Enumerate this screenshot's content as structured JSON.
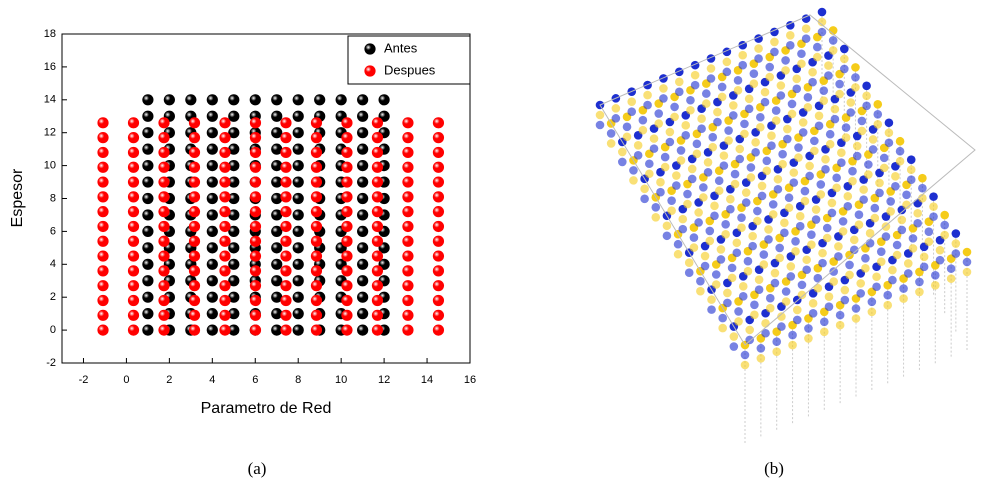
{
  "chart_data": {
    "type": "scatter",
    "xlabel": "Parametro de Red",
    "ylabel": "Espesor",
    "xlim": [
      -3,
      16
    ],
    "ylim": [
      -2,
      18
    ],
    "xticks": [
      -2,
      0,
      2,
      4,
      6,
      8,
      10,
      12,
      14,
      16
    ],
    "yticks": [
      -2,
      0,
      2,
      4,
      6,
      8,
      10,
      12,
      14,
      16,
      18
    ],
    "legend": "upper right",
    "series": [
      {
        "name": "Antes",
        "color": "#000000",
        "x": [
          1,
          1,
          1,
          1,
          1,
          1,
          1,
          1,
          1,
          1,
          1,
          1,
          1,
          1,
          1,
          2,
          2,
          2,
          2,
          2,
          2,
          2,
          2,
          2,
          2,
          2,
          2,
          2,
          2,
          2,
          3,
          3,
          3,
          3,
          3,
          3,
          3,
          3,
          3,
          3,
          3,
          3,
          3,
          3,
          3,
          4,
          4,
          4,
          4,
          4,
          4,
          4,
          4,
          4,
          4,
          4,
          4,
          4,
          4,
          4,
          5,
          5,
          5,
          5,
          5,
          5,
          5,
          5,
          5,
          5,
          5,
          5,
          5,
          5,
          5,
          6,
          6,
          6,
          6,
          6,
          6,
          6,
          6,
          6,
          6,
          6,
          6,
          6,
          6,
          6,
          7,
          7,
          7,
          7,
          7,
          7,
          7,
          7,
          7,
          7,
          7,
          7,
          7,
          7,
          7,
          8,
          8,
          8,
          8,
          8,
          8,
          8,
          8,
          8,
          8,
          8,
          8,
          8,
          8,
          8,
          9,
          9,
          9,
          9,
          9,
          9,
          9,
          9,
          9,
          9,
          9,
          9,
          9,
          9,
          9,
          10,
          10,
          10,
          10,
          10,
          10,
          10,
          10,
          10,
          10,
          10,
          10,
          10,
          10,
          10,
          11,
          11,
          11,
          11,
          11,
          11,
          11,
          11,
          11,
          11,
          11,
          11,
          11,
          11,
          11,
          12,
          12,
          12,
          12,
          12,
          12,
          12,
          12,
          12,
          12,
          12,
          12,
          12,
          12,
          12
        ],
        "values": [
          0,
          1,
          2,
          3,
          4,
          5,
          6,
          7,
          8,
          9,
          10,
          11,
          12,
          13,
          14,
          0,
          1,
          2,
          3,
          4,
          5,
          6,
          7,
          8,
          9,
          10,
          11,
          12,
          13,
          14,
          0,
          1,
          2,
          3,
          4,
          5,
          6,
          7,
          8,
          9,
          10,
          11,
          12,
          13,
          14,
          0,
          1,
          2,
          3,
          4,
          5,
          6,
          7,
          8,
          9,
          10,
          11,
          12,
          13,
          14,
          0,
          1,
          2,
          3,
          4,
          5,
          6,
          7,
          8,
          9,
          10,
          11,
          12,
          13,
          14,
          0,
          1,
          2,
          3,
          4,
          5,
          6,
          7,
          8,
          9,
          10,
          11,
          12,
          13,
          14,
          0,
          1,
          2,
          3,
          4,
          5,
          6,
          7,
          8,
          9,
          10,
          11,
          12,
          13,
          14,
          0,
          1,
          2,
          3,
          4,
          5,
          6,
          7,
          8,
          9,
          10,
          11,
          12,
          13,
          14,
          0,
          1,
          2,
          3,
          4,
          5,
          6,
          7,
          8,
          9,
          10,
          11,
          12,
          13,
          14,
          0,
          1,
          2,
          3,
          4,
          5,
          6,
          7,
          8,
          9,
          10,
          11,
          12,
          13,
          14,
          0,
          1,
          2,
          3,
          4,
          5,
          6,
          7,
          8,
          9,
          10,
          11,
          12,
          13,
          14,
          0,
          1,
          2,
          3,
          4,
          5,
          6,
          7,
          8,
          9,
          10,
          11,
          12,
          13,
          14
        ]
      },
      {
        "name": "Despues",
        "color": "#ff0000",
        "x": [
          -1.09,
          -1.09,
          -1.09,
          -1.09,
          -1.09,
          -1.09,
          -1.09,
          -1.09,
          -1.09,
          -1.09,
          -1.09,
          -1.09,
          -1.09,
          -1.09,
          -1.09,
          0.33,
          0.33,
          0.33,
          0.33,
          0.33,
          0.33,
          0.33,
          0.33,
          0.33,
          0.33,
          0.33,
          0.33,
          0.33,
          0.33,
          0.33,
          1.75,
          1.75,
          1.75,
          1.75,
          1.75,
          1.75,
          1.75,
          1.75,
          1.75,
          1.75,
          1.75,
          1.75,
          1.75,
          1.75,
          1.75,
          3.17,
          3.17,
          3.17,
          3.17,
          3.17,
          3.17,
          3.17,
          3.17,
          3.17,
          3.17,
          3.17,
          3.17,
          3.17,
          3.17,
          3.17,
          4.59,
          4.59,
          4.59,
          4.59,
          4.59,
          4.59,
          4.59,
          4.59,
          4.59,
          4.59,
          4.59,
          4.59,
          4.59,
          4.59,
          4.59,
          6.01,
          6.01,
          6.01,
          6.01,
          6.01,
          6.01,
          6.01,
          6.01,
          6.01,
          6.01,
          6.01,
          6.01,
          6.01,
          6.01,
          6.01,
          7.43,
          7.43,
          7.43,
          7.43,
          7.43,
          7.43,
          7.43,
          7.43,
          7.43,
          7.43,
          7.43,
          7.43,
          7.43,
          7.43,
          7.43,
          8.85,
          8.85,
          8.85,
          8.85,
          8.85,
          8.85,
          8.85,
          8.85,
          8.85,
          8.85,
          8.85,
          8.85,
          8.85,
          8.85,
          8.85,
          10.27,
          10.27,
          10.27,
          10.27,
          10.27,
          10.27,
          10.27,
          10.27,
          10.27,
          10.27,
          10.27,
          10.27,
          10.27,
          10.27,
          10.27,
          11.69,
          11.69,
          11.69,
          11.69,
          11.69,
          11.69,
          11.69,
          11.69,
          11.69,
          11.69,
          11.69,
          11.69,
          11.69,
          11.69,
          11.69,
          13.11,
          13.11,
          13.11,
          13.11,
          13.11,
          13.11,
          13.11,
          13.11,
          13.11,
          13.11,
          13.11,
          13.11,
          13.11,
          13.11,
          13.11,
          14.53,
          14.53,
          14.53,
          14.53,
          14.53,
          14.53,
          14.53,
          14.53,
          14.53,
          14.53,
          14.53,
          14.53,
          14.53,
          14.53,
          14.53
        ],
        "values": [
          0,
          0.9,
          1.8,
          2.7,
          3.6,
          4.5,
          5.4,
          6.3,
          7.2,
          8.1,
          9,
          9.9,
          10.8,
          11.7,
          12.6,
          0,
          0.9,
          1.8,
          2.7,
          3.6,
          4.5,
          5.4,
          6.3,
          7.2,
          8.1,
          9,
          9.9,
          10.8,
          11.7,
          12.6,
          0,
          0.9,
          1.8,
          2.7,
          3.6,
          4.5,
          5.4,
          6.3,
          7.2,
          8.1,
          9,
          9.9,
          10.8,
          11.7,
          12.6,
          0,
          0.9,
          1.8,
          2.7,
          3.6,
          4.5,
          5.4,
          6.3,
          7.2,
          8.1,
          9,
          9.9,
          10.8,
          11.7,
          12.6,
          0,
          0.9,
          1.8,
          2.7,
          3.6,
          4.5,
          5.4,
          6.3,
          7.2,
          8.1,
          9,
          9.9,
          10.8,
          11.7,
          12.6,
          0,
          0.9,
          1.8,
          2.7,
          3.6,
          4.5,
          5.4,
          6.3,
          7.2,
          8.1,
          9,
          9.9,
          10.8,
          11.7,
          12.6,
          0,
          0.9,
          1.8,
          2.7,
          3.6,
          4.5,
          5.4,
          6.3,
          7.2,
          8.1,
          9,
          9.9,
          10.8,
          11.7,
          12.6,
          0,
          0.9,
          1.8,
          2.7,
          3.6,
          4.5,
          5.4,
          6.3,
          7.2,
          8.1,
          9,
          9.9,
          10.8,
          11.7,
          12.6,
          0,
          0.9,
          1.8,
          2.7,
          3.6,
          4.5,
          5.4,
          6.3,
          7.2,
          8.1,
          9,
          9.9,
          10.8,
          11.7,
          12.6,
          0,
          0.9,
          1.8,
          2.7,
          3.6,
          4.5,
          5.4,
          6.3,
          7.2,
          8.1,
          9,
          9.9,
          10.8,
          11.7,
          12.6,
          0,
          0.9,
          1.8,
          2.7,
          3.6,
          4.5,
          5.4,
          6.3,
          7.2,
          8.1,
          9,
          9.9,
          10.8,
          11.7,
          12.6,
          0,
          0.9,
          1.8,
          2.7,
          3.6,
          4.5,
          5.4,
          6.3,
          7.2,
          8.1,
          9,
          9.9,
          10.8,
          11.7,
          12.6
        ]
      }
    ]
  },
  "captions": [
    "(a)",
    "(b)"
  ]
}
